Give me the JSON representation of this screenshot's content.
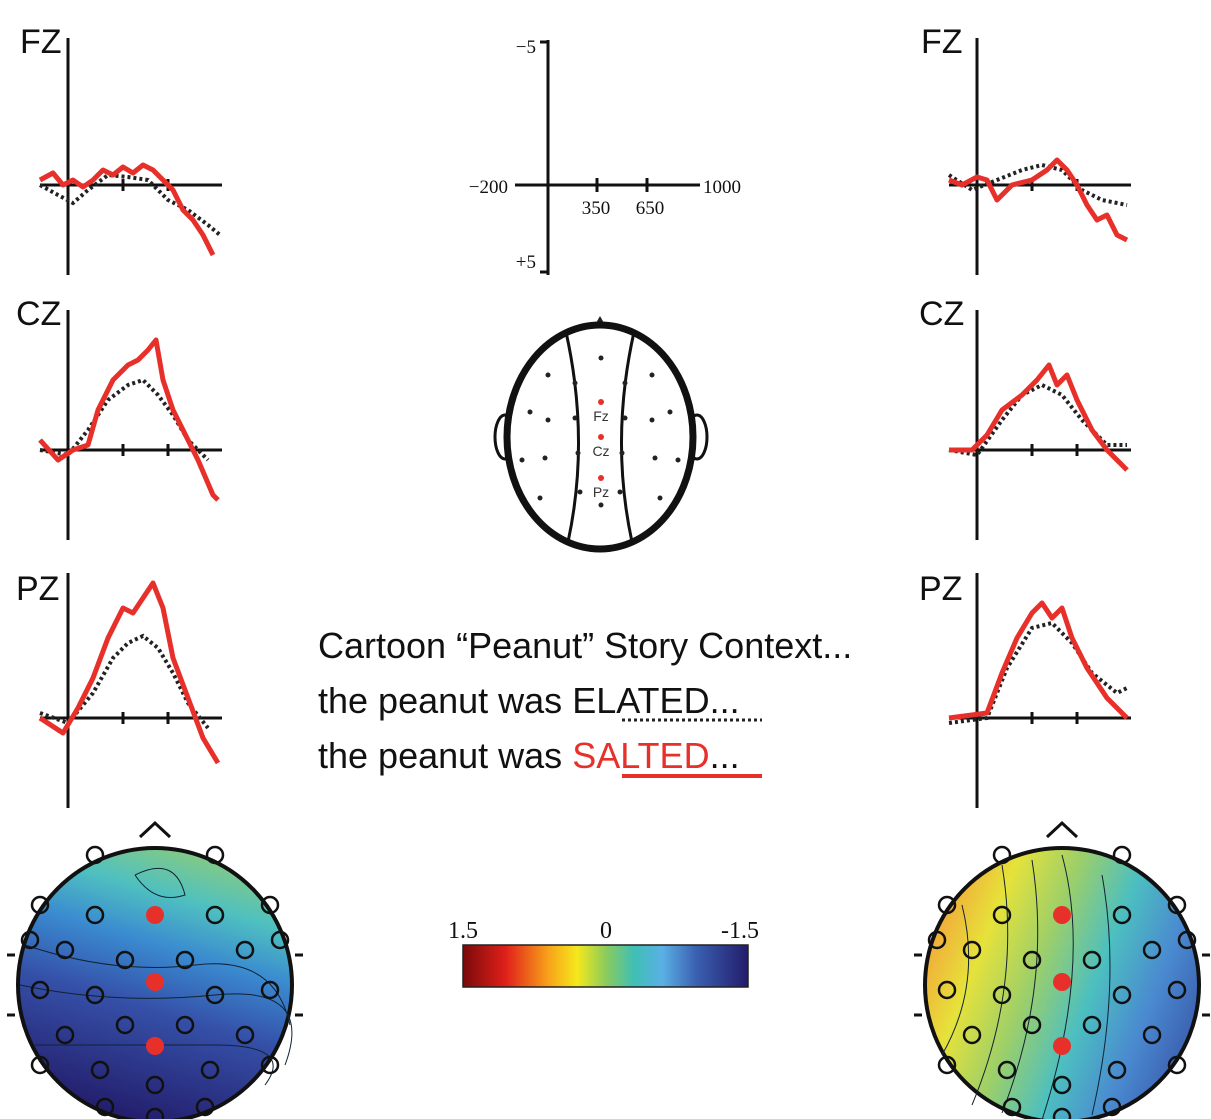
{
  "panels": {
    "left": {
      "labels": [
        "FZ",
        "CZ",
        "PZ"
      ]
    },
    "right": {
      "labels": [
        "FZ",
        "CZ",
        "PZ"
      ]
    }
  },
  "scale_key": {
    "y_top": "−5",
    "y_bottom": "+5",
    "x_start": "−200",
    "ticks": [
      "350",
      "650"
    ],
    "x_end": "1000"
  },
  "electrode_map": {
    "labels": [
      "Fz",
      "Cz",
      "Pz"
    ]
  },
  "stimuli": {
    "context": "Cartoon “Peanut” Story Context...",
    "lines": [
      {
        "prefix": "the peanut was ",
        "word": "ELATED",
        "suffix": "..."
      },
      {
        "prefix": "the peanut was ",
        "word": "SALTED",
        "suffix": "..."
      }
    ]
  },
  "colorbar": {
    "labels": [
      "1.5",
      "0",
      "-1.5"
    ]
  }
}
